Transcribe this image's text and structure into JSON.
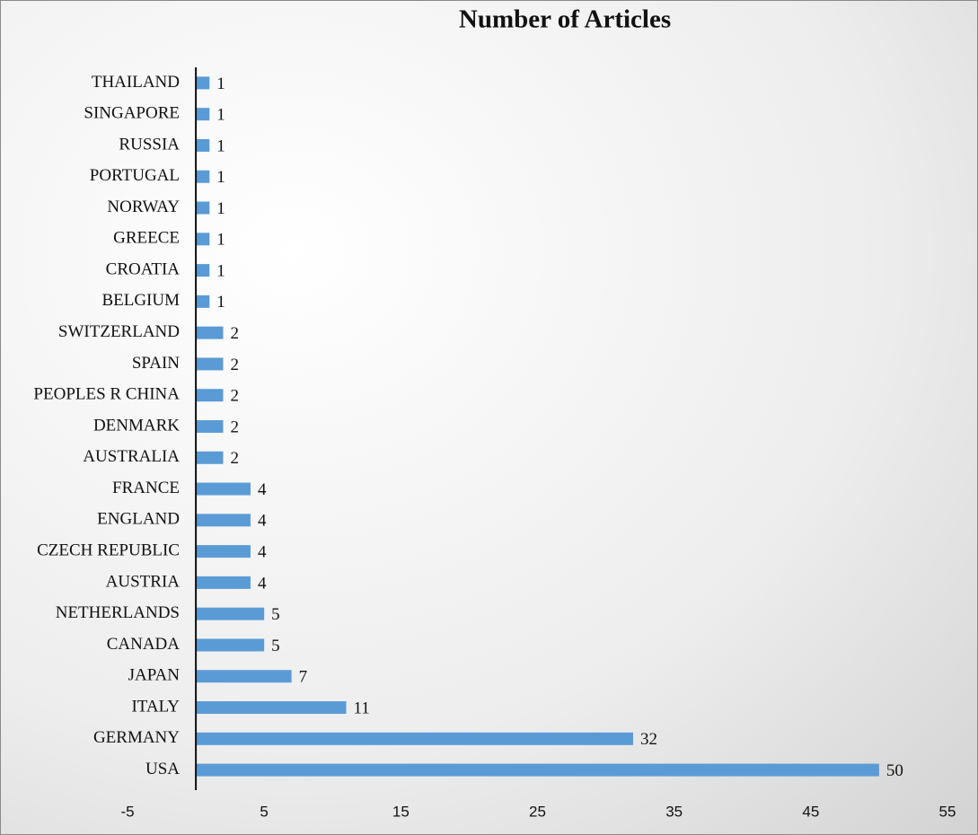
{
  "chart_data": {
    "type": "bar",
    "orientation": "horizontal",
    "title": "Number of Articles",
    "categories": [
      "THAILAND",
      "SINGAPORE",
      "RUSSIA",
      "PORTUGAL",
      "NORWAY",
      "GREECE",
      "CROATIA",
      "BELGIUM",
      "SWITZERLAND",
      "SPAIN",
      "PEOPLES R CHINA",
      "DENMARK",
      "AUSTRALIA",
      "FRANCE",
      "ENGLAND",
      "CZECH REPUBLIC",
      "AUSTRIA",
      "NETHERLANDS",
      "CANADA",
      "JAPAN",
      "ITALY",
      "GERMANY",
      "USA"
    ],
    "values": [
      1,
      1,
      1,
      1,
      1,
      1,
      1,
      1,
      2,
      2,
      2,
      2,
      2,
      4,
      4,
      4,
      4,
      5,
      5,
      7,
      11,
      32,
      50
    ],
    "color": "#5b9bd5",
    "xlim": [
      -5,
      55
    ],
    "xticks": [
      -5,
      5,
      15,
      25,
      35,
      45,
      55
    ],
    "grid": false
  }
}
